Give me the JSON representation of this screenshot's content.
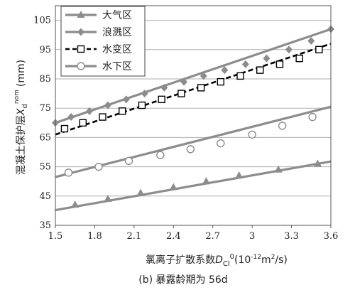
{
  "chart_data": {
    "type": "line",
    "xlabel_prefix": "氯离子扩散系数",
    "xlabel_var": "D",
    "xlabel_sub": "Cl",
    "xlabel_sup": "0",
    "xlabel_unit": "(10",
    "xlabel_unit_exp": "-12",
    "xlabel_unit_tail": "m",
    "xlabel_unit_exp2": "2",
    "xlabel_unit_end": "/s)",
    "ylabel_prefix": "混凝土保护层",
    "ylabel_var": "X",
    "ylabel_sub": "d",
    "ylabel_sup": "nom",
    "ylabel_unit": "(mm)",
    "caption": "(b) 暴露龄期为 56d",
    "xlim": [
      1.5,
      3.6
    ],
    "ylim": [
      35,
      110
    ],
    "x_ticks": [
      "1.5",
      "1.8",
      "2.1",
      "2.4",
      "2.7",
      "3",
      "3.3",
      "3.6"
    ],
    "y_ticks": [
      "35",
      "45",
      "55",
      "65",
      "75",
      "85",
      "95",
      "105"
    ],
    "legend_position": "top-left",
    "grid": "horizontal",
    "colors": {
      "solid": "#8c8c8c",
      "dashed": "#000000",
      "grid": "#b0b0b0",
      "axis": "#555555"
    },
    "series": [
      {
        "name": "大气区",
        "marker": "triangle",
        "style": "solid",
        "line": {
          "x": [
            1.5,
            3.6
          ],
          "y": [
            40.2,
            56.8
          ]
        },
        "x": [
          1.65,
          1.9,
          2.15,
          2.4,
          2.65,
          2.9,
          3.2,
          3.5
        ],
        "y": [
          42,
          44,
          46,
          48,
          50,
          52,
          54,
          56
        ]
      },
      {
        "name": "浪溅区",
        "marker": "diamond",
        "style": "solid",
        "line": {
          "x": [
            1.5,
            3.6
          ],
          "y": [
            70,
            102
          ]
        },
        "x": [
          1.5,
          1.62,
          1.76,
          1.9,
          2.04,
          2.18,
          2.33,
          2.48,
          2.63,
          2.79,
          2.95,
          3.11,
          3.28,
          3.45,
          3.6
        ],
        "y": [
          70,
          72,
          74,
          76,
          78,
          80,
          82,
          84,
          86,
          88,
          90,
          92,
          95,
          98,
          102
        ]
      },
      {
        "name": "水变区",
        "marker": "square",
        "style": "dashed",
        "line": {
          "x": [
            1.5,
            3.6
          ],
          "y": [
            66,
            97
          ]
        },
        "x": [
          1.57,
          1.71,
          1.86,
          2.01,
          2.16,
          2.31,
          2.46,
          2.61,
          2.76,
          2.91,
          3.06,
          3.21,
          3.36,
          3.51
        ],
        "y": [
          68,
          70,
          72,
          74,
          76,
          78,
          80,
          82,
          84,
          86,
          88,
          90,
          92,
          95
        ]
      },
      {
        "name": "水下区",
        "marker": "circle",
        "style": "solid",
        "line": {
          "x": [
            1.5,
            3.6
          ],
          "y": [
            51.5,
            75.5
          ]
        },
        "x": [
          1.6,
          1.83,
          2.06,
          2.3,
          2.53,
          2.76,
          3.0,
          3.23,
          3.46
        ],
        "y": [
          53,
          55,
          57,
          59,
          61,
          63,
          66,
          69,
          72
        ]
      }
    ]
  }
}
